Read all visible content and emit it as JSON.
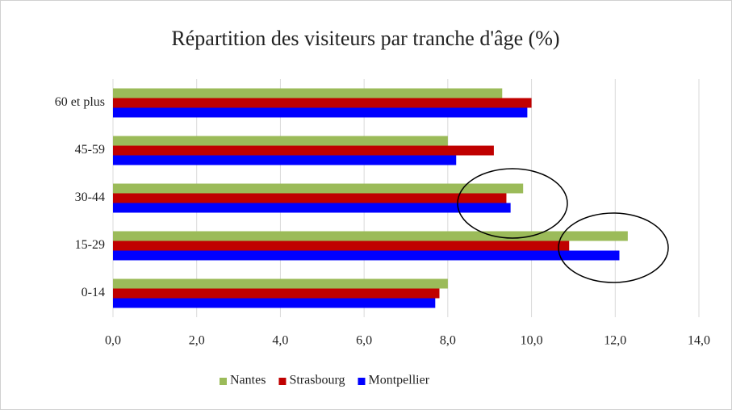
{
  "chart_data": {
    "type": "hbar",
    "title": "Répartition des visiteurs par tranche d'âge (%)",
    "categories": [
      "60 et plus",
      "45-59",
      "30-44",
      "15-29",
      "0-14"
    ],
    "series": [
      {
        "name": "Nantes",
        "color": "#9bbb59",
        "values": [
          9.3,
          8.0,
          9.8,
          12.3,
          8.0
        ]
      },
      {
        "name": "Strasbourg",
        "color": "#c00000",
        "values": [
          10.0,
          9.1,
          9.4,
          10.9,
          7.8
        ]
      },
      {
        "name": "Montpellier",
        "color": "#0000ff",
        "values": [
          9.9,
          8.2,
          9.5,
          12.1,
          7.7
        ]
      }
    ],
    "xlim": [
      0,
      14
    ],
    "xticks": [
      {
        "value": 0,
        "label": "0,0"
      },
      {
        "value": 2,
        "label": "2,0"
      },
      {
        "value": 4,
        "label": "4,0"
      },
      {
        "value": 6,
        "label": "6,0"
      },
      {
        "value": 8,
        "label": "8,0"
      },
      {
        "value": 10,
        "label": "10,0"
      },
      {
        "value": 12,
        "label": "12,0"
      },
      {
        "value": 14,
        "label": "14,0"
      }
    ],
    "grid": true,
    "legend": "bottom"
  }
}
